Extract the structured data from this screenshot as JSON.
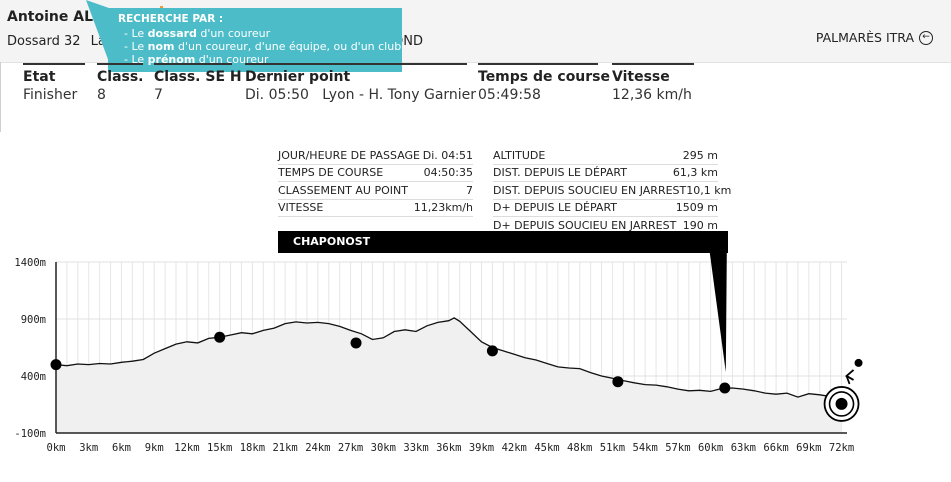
{
  "header": {
    "runner_name": "Antoine ALLO",
    "bib_text": "Dossard 32",
    "race_text": "La S",
    "race_tail": "OND",
    "palmares_label": "PALMARÈS ITRA"
  },
  "tooltip": {
    "title": "RECHERCHE PAR :",
    "lines": [
      {
        "pre": "- Le ",
        "bold": "dossard",
        "post": " d'un coureur"
      },
      {
        "pre": "- Le ",
        "bold": "nom",
        "post": " d'un coureur, d'une équipe, ou d'un club"
      },
      {
        "pre": "- Le ",
        "bold": "prénom",
        "post": " d'un coureur"
      }
    ]
  },
  "stats": [
    {
      "label": "Etat",
      "value": "Finisher"
    },
    {
      "label": "Class.",
      "value": "8"
    },
    {
      "label": "Class. SE H",
      "value": "7"
    },
    {
      "label": "Dernier point",
      "value": "Di. 05:50   Lyon - H. Tony Garnier"
    },
    {
      "label": "Temps de course",
      "value": "05:49:58"
    },
    {
      "label": "Vitesse",
      "value": "12,36 km/h"
    }
  ],
  "checkpoint": {
    "left": [
      {
        "label": "JOUR/HEURE DE PASSAGE",
        "value": "Di. 04:51"
      },
      {
        "label": "TEMPS DE COURSE",
        "value": "04:50:35"
      },
      {
        "label": "CLASSEMENT AU POINT",
        "value": "7"
      },
      {
        "label": "VITESSE",
        "value": "11,23km/h"
      }
    ],
    "right": [
      {
        "label": "ALTITUDE",
        "value": "295 m"
      },
      {
        "label": "DIST. DEPUIS LE DÉPART",
        "value": "61,3 km"
      },
      {
        "label": "DIST. DEPUIS SOUCIEU EN JARREST",
        "value": "10,1 km"
      },
      {
        "label": "D+ DEPUIS LE DÉPART",
        "value": "1509 m"
      },
      {
        "label": "D+ DEPUIS SOUCIEU EN JARREST",
        "value": "190 m"
      }
    ],
    "name": "CHAPONOST"
  },
  "chart_data": {
    "type": "area",
    "x_ticks": [
      0,
      3,
      6,
      9,
      12,
      15,
      18,
      21,
      24,
      27,
      30,
      33,
      36,
      39,
      42,
      45,
      48,
      51,
      54,
      57,
      60,
      63,
      66,
      69,
      72
    ],
    "x_tick_labels": [
      "0km",
      "3km",
      "6km",
      "9km",
      "12km",
      "15km",
      "18km",
      "21km",
      "24km",
      "27km",
      "30km",
      "33km",
      "36km",
      "39km",
      "42km",
      "45km",
      "48km",
      "51km",
      "54km",
      "57km",
      "60km",
      "63km",
      "66km",
      "69km",
      "72km"
    ],
    "y_ticks": [
      -100,
      400,
      900,
      1400
    ],
    "y_tick_labels": [
      "-100m",
      "400m",
      "900m",
      "1400m"
    ],
    "xlim": [
      0,
      72.5
    ],
    "ylim": [
      -100,
      1400
    ],
    "grid": true,
    "profile": [
      [
        0,
        500
      ],
      [
        1,
        490
      ],
      [
        2,
        505
      ],
      [
        3,
        500
      ],
      [
        4,
        510
      ],
      [
        5,
        505
      ],
      [
        6,
        520
      ],
      [
        7,
        530
      ],
      [
        8,
        545
      ],
      [
        9,
        600
      ],
      [
        10,
        640
      ],
      [
        11,
        680
      ],
      [
        12,
        700
      ],
      [
        13,
        690
      ],
      [
        14,
        730
      ],
      [
        15,
        740
      ],
      [
        16,
        760
      ],
      [
        17,
        780
      ],
      [
        18,
        770
      ],
      [
        19,
        800
      ],
      [
        20,
        820
      ],
      [
        21,
        860
      ],
      [
        22,
        875
      ],
      [
        23,
        865
      ],
      [
        24,
        870
      ],
      [
        25,
        860
      ],
      [
        26,
        835
      ],
      [
        27,
        800
      ],
      [
        28,
        770
      ],
      [
        29,
        720
      ],
      [
        30,
        735
      ],
      [
        31,
        790
      ],
      [
        32,
        805
      ],
      [
        33,
        790
      ],
      [
        34,
        840
      ],
      [
        35,
        870
      ],
      [
        36,
        885
      ],
      [
        36.5,
        910
      ],
      [
        37,
        880
      ],
      [
        38,
        790
      ],
      [
        39,
        700
      ],
      [
        40,
        650
      ],
      [
        41,
        620
      ],
      [
        42,
        590
      ],
      [
        43,
        560
      ],
      [
        44,
        540
      ],
      [
        45,
        510
      ],
      [
        46,
        480
      ],
      [
        47,
        470
      ],
      [
        48,
        465
      ],
      [
        49,
        430
      ],
      [
        50,
        400
      ],
      [
        51,
        380
      ],
      [
        52,
        360
      ],
      [
        53,
        340
      ],
      [
        54,
        325
      ],
      [
        55,
        320
      ],
      [
        56,
        305
      ],
      [
        57,
        285
      ],
      [
        58,
        270
      ],
      [
        59,
        275
      ],
      [
        60,
        265
      ],
      [
        61,
        290
      ],
      [
        62,
        295
      ],
      [
        63,
        285
      ],
      [
        64,
        270
      ],
      [
        65,
        250
      ],
      [
        66,
        240
      ],
      [
        67,
        250
      ],
      [
        68,
        215
      ],
      [
        69,
        245
      ],
      [
        70,
        235
      ],
      [
        71,
        220
      ],
      [
        72,
        155
      ]
    ],
    "checkpoints": [
      [
        0,
        500
      ],
      [
        15,
        740
      ],
      [
        27.5,
        690
      ],
      [
        40,
        620
      ],
      [
        51.5,
        350
      ],
      [
        61.3,
        295
      ],
      [
        72,
        155
      ]
    ],
    "current_checkpoint_km": 61.3
  }
}
